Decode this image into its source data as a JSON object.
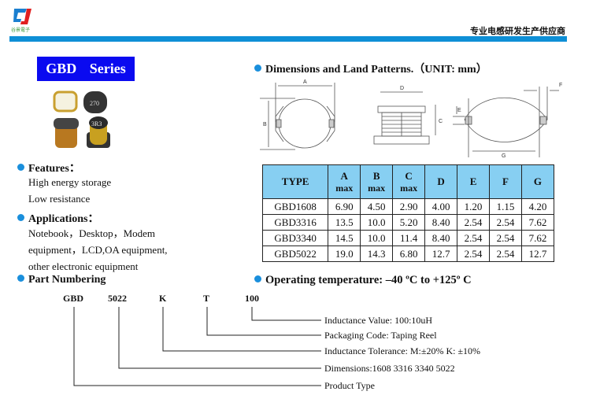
{
  "header": {
    "logo_text": "谷景電子",
    "tagline": "专业电感研发生产供应商",
    "accent": "#0e8fd6"
  },
  "series_title": "GBD Series",
  "features": {
    "title": "Features：",
    "items": [
      "High energy storage",
      "Low resistance"
    ]
  },
  "applications": {
    "title": "Applications：",
    "lines": [
      "Notebook，Desktop，Modem",
      "equipment，LCD,OA equipment,",
      "other electronic equipment"
    ]
  },
  "part_numbering": {
    "title": "Part Numbering",
    "codes": [
      "GBD",
      "5022",
      "K",
      "T",
      "100"
    ],
    "labels": [
      "Inductance Value:   100:10uH",
      "Packaging Code: Taping Reel",
      "Inductance Tolerance: M:±20% K: ±10%",
      "Dimensions:1608 3316 3340 5022",
      "Product Type"
    ]
  },
  "dimensions": {
    "title": "Dimensions and Land Patterns.（UNIT: mm）",
    "diagram_labels": [
      "A",
      "B",
      "D",
      "C",
      "E",
      "F",
      "G"
    ]
  },
  "table": {
    "headers": [
      [
        "TYPE",
        ""
      ],
      [
        "A",
        "max"
      ],
      [
        "B",
        "max"
      ],
      [
        "C",
        "max"
      ],
      [
        "D",
        ""
      ],
      [
        "E",
        ""
      ],
      [
        "F",
        ""
      ],
      [
        "G",
        ""
      ]
    ],
    "rows": [
      [
        "GBD1608",
        "6.90",
        "4.50",
        "2.90",
        "4.00",
        "1.20",
        "1.15",
        "4.20"
      ],
      [
        "GBD3316",
        "13.5",
        "10.0",
        "5.20",
        "8.40",
        "2.54",
        "2.54",
        "7.62"
      ],
      [
        "GBD3340",
        "14.5",
        "10.0",
        "11.4",
        "8.40",
        "2.54",
        "2.54",
        "7.62"
      ],
      [
        "GBD5022",
        "19.0",
        "14.3",
        "6.80",
        "12.7",
        "2.54",
        "2.54",
        "12.7"
      ]
    ]
  },
  "operating_temp": "Operating temperature: –40 ºC to +125º C"
}
